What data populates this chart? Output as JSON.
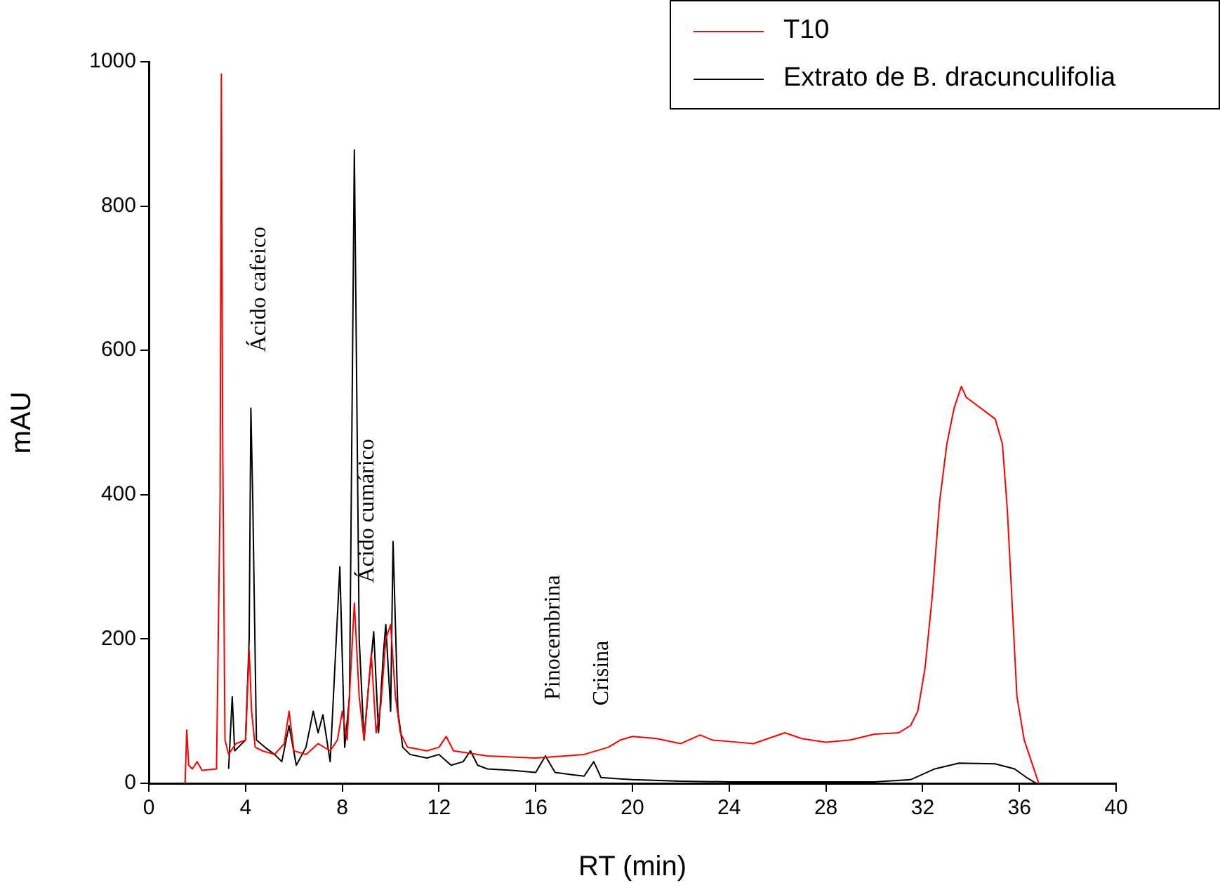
{
  "chart_data": {
    "type": "line",
    "xlabel": "RT (min)",
    "ylabel": "mAU",
    "xlim": [
      0,
      40
    ],
    "xticks": [
      0,
      4,
      8,
      12,
      16,
      20,
      24,
      28,
      32,
      36,
      40
    ],
    "ylim": [
      0,
      1000
    ],
    "yticks": [
      0,
      200,
      400,
      600,
      800,
      1000
    ],
    "grid": false,
    "legend": "top right",
    "marker": "none",
    "annotations": [
      {
        "text": "Ácido cafeico",
        "x": 4.22,
        "y": 520
      },
      {
        "text": "Ácido cumárico",
        "x": 8.7,
        "y": 200
      },
      {
        "text": "Pinocembrina",
        "x": 16.4,
        "y": 38
      },
      {
        "text": "Crisina",
        "x": 18.4,
        "y": 30
      }
    ],
    "series": [
      {
        "name": "T10",
        "color": "#ff0000",
        "x": [
          1.5,
          1.57,
          1.65,
          1.8,
          2.0,
          2.2,
          2.8,
          2.95,
          3.0,
          3.05,
          3.15,
          3.3,
          3.6,
          4.0,
          4.15,
          4.25,
          4.4,
          4.7,
          5.2,
          5.6,
          5.8,
          6.0,
          6.5,
          7.0,
          7.5,
          7.8,
          8.0,
          8.2,
          8.5,
          8.7,
          8.9,
          9.2,
          9.4,
          9.6,
          9.8,
          10.0,
          10.2,
          10.4,
          10.7,
          11.5,
          12.0,
          12.3,
          12.6,
          14,
          16,
          18,
          19,
          19.5,
          20,
          21,
          22,
          22.8,
          23.3,
          24,
          25,
          26.3,
          27,
          28,
          29,
          30,
          31,
          31.5,
          31.8,
          32.1,
          32.4,
          32.7,
          33.0,
          33.3,
          33.6,
          33.8,
          34.2,
          34.6,
          35.0,
          35.3,
          35.5,
          35.7,
          35.9,
          36.2,
          36.5,
          36.8
        ],
        "values": [
          0,
          74,
          25,
          20,
          30,
          18,
          20,
          400,
          983,
          500,
          60,
          40,
          55,
          60,
          185,
          100,
          50,
          45,
          40,
          55,
          100,
          45,
          40,
          55,
          45,
          60,
          100,
          60,
          250,
          120,
          60,
          180,
          70,
          110,
          200,
          220,
          120,
          70,
          50,
          45,
          50,
          65,
          45,
          38,
          35,
          40,
          50,
          60,
          65,
          62,
          55,
          67,
          60,
          58,
          55,
          70,
          62,
          57,
          60,
          68,
          70,
          80,
          100,
          160,
          260,
          390,
          470,
          520,
          550,
          535,
          525,
          515,
          505,
          470,
          380,
          250,
          120,
          60,
          30,
          0
        ]
      },
      {
        "name": "Extrato de B. dracunculifolia",
        "color": "#000000",
        "x": [
          3.3,
          3.45,
          3.55,
          3.7,
          4.0,
          4.15,
          4.22,
          4.3,
          4.45,
          4.8,
          5.2,
          5.5,
          5.8,
          6.1,
          6.5,
          6.8,
          7.0,
          7.2,
          7.5,
          7.9,
          8.1,
          8.3,
          8.5,
          8.7,
          8.9,
          9.1,
          9.3,
          9.5,
          9.7,
          9.8,
          10.0,
          10.1,
          10.3,
          10.5,
          10.8,
          11.5,
          12,
          12.5,
          13,
          13.3,
          13.6,
          14,
          15,
          16,
          16.4,
          16.8,
          17.5,
          18,
          18.4,
          18.7,
          19.5,
          20,
          22,
          24,
          26,
          28,
          30,
          31.5,
          32.5,
          33.5,
          35,
          35.8,
          36.3,
          36.7
        ],
        "values": [
          20,
          120,
          45,
          50,
          60,
          200,
          520,
          390,
          60,
          50,
          40,
          30,
          80,
          25,
          50,
          100,
          70,
          95,
          30,
          300,
          50,
          120,
          878,
          200,
          60,
          140,
          210,
          70,
          180,
          220,
          100,
          335,
          100,
          50,
          40,
          35,
          40,
          25,
          30,
          45,
          25,
          20,
          18,
          15,
          38,
          15,
          12,
          10,
          30,
          8,
          6,
          5,
          3,
          2,
          2,
          2,
          2,
          5,
          20,
          28,
          27,
          20,
          8,
          0
        ]
      }
    ]
  }
}
